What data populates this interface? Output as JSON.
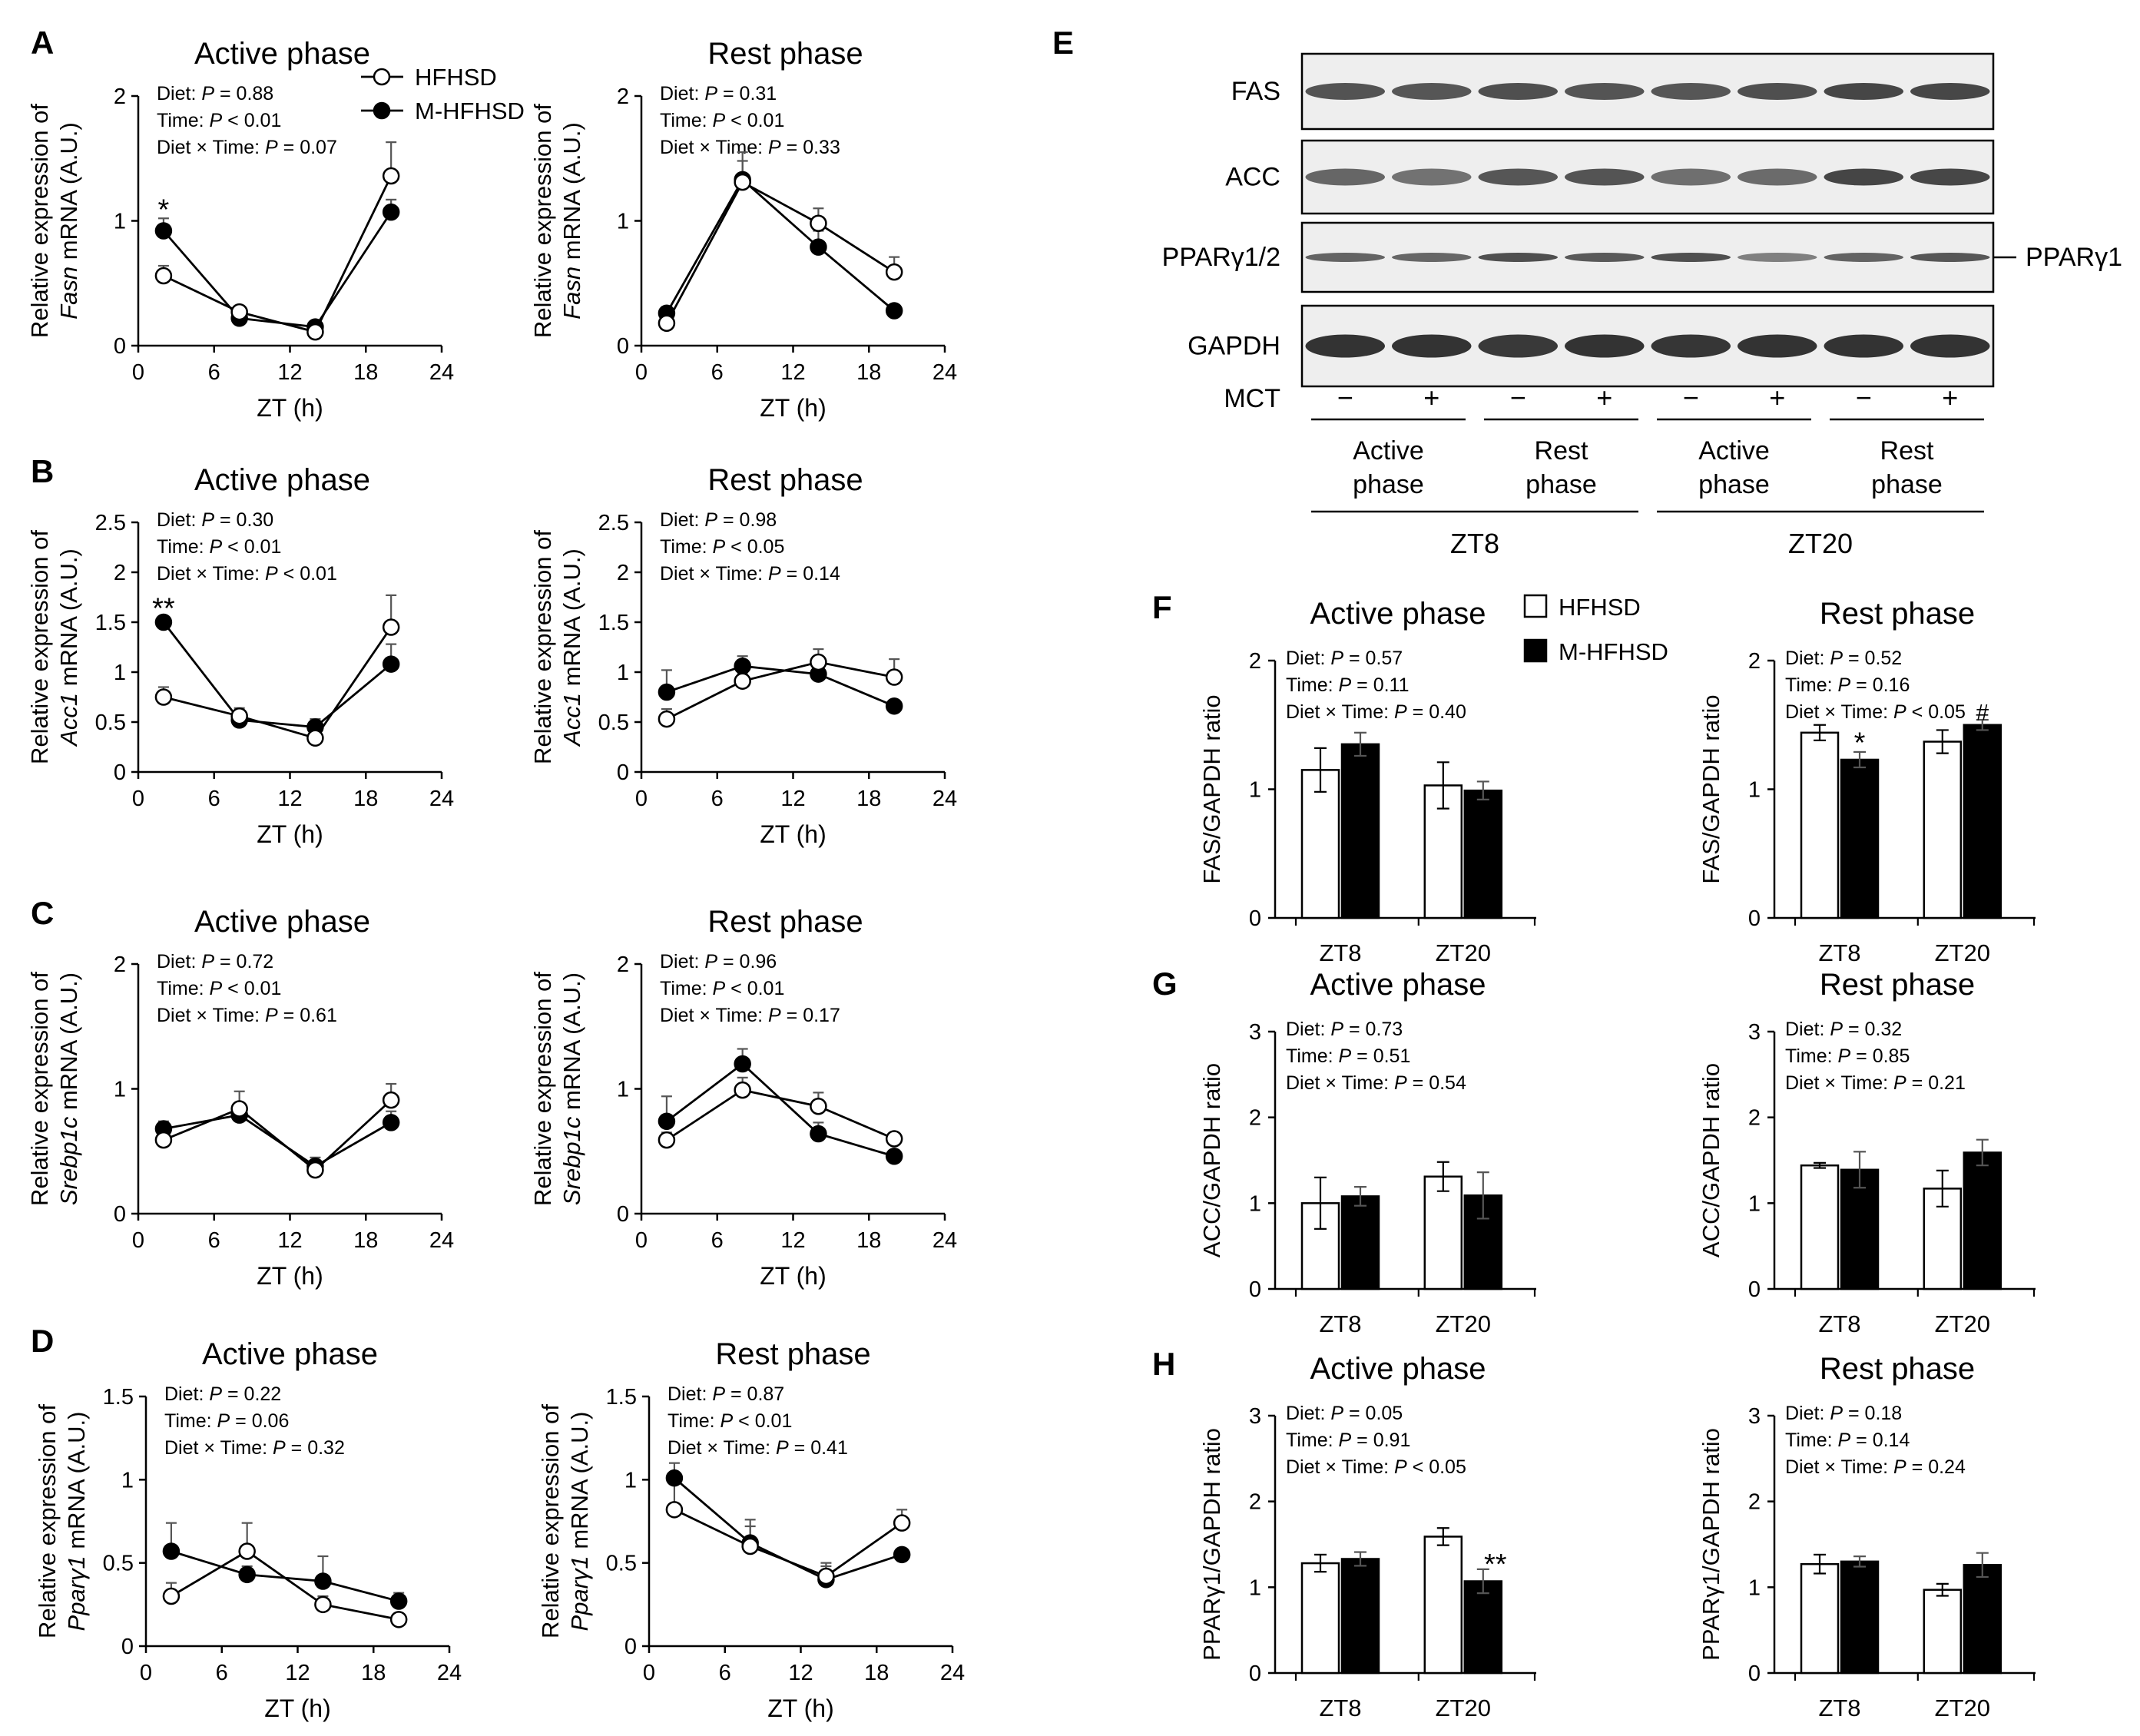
{
  "colors": {
    "open_fill": "#ffffff",
    "filled": "#000000",
    "axis": "#000000",
    "error": "#555555"
  },
  "legend_line": {
    "hfhsd": "HFHSD",
    "mhfhsd": "M-HFHSD"
  },
  "legend_bar": {
    "hfhsd": "HFHSD",
    "mhfhsd": "M-HFHSD"
  },
  "panel_letters": {
    "A": "A",
    "B": "B",
    "C": "C",
    "D": "D",
    "E": "E",
    "F": "F",
    "G": "G",
    "H": "H"
  },
  "chart_data": [
    {
      "id": "A-active",
      "type": "line",
      "title": "Active phase",
      "ylabel": "Relative expression of Fasn mRNA (A.U.)",
      "ylabel_gene": "Fasn",
      "xlabel": "ZT (h)",
      "ylim": [
        0,
        2
      ],
      "yticks": [
        "0",
        "1",
        "2"
      ],
      "xlim": [
        0,
        24
      ],
      "xticks": [
        "0",
        "6",
        "12",
        "18",
        "24"
      ],
      "stats": [
        {
          "label": "Diet: ",
          "p": "P",
          "value": " = 0.88"
        },
        {
          "label": "Time: ",
          "p": "P",
          "value": " < 0.01"
        },
        {
          "label": "Diet × Time: ",
          "p": "P",
          "value": " = 0.07"
        }
      ],
      "x": [
        2,
        8,
        14,
        20
      ],
      "series": [
        {
          "name": "HFHSD",
          "values": [
            0.56,
            0.27,
            0.11,
            1.36
          ],
          "err": [
            0.08,
            0.05,
            0.03,
            0.27
          ]
        },
        {
          "name": "M-HFHSD",
          "values": [
            0.92,
            0.22,
            0.15,
            1.07
          ],
          "err": [
            0.1,
            0.03,
            0.03,
            0.1
          ]
        }
      ],
      "annotations": [
        {
          "text": "*",
          "x": 2,
          "y": 1.1
        }
      ]
    },
    {
      "id": "A-rest",
      "type": "line",
      "title": "Rest phase",
      "ylabel": "Relative expression of Fasn mRNA (A.U.)",
      "ylabel_gene": "Fasn",
      "xlabel": "ZT (h)",
      "ylim": [
        0,
        2
      ],
      "yticks": [
        "0",
        "1",
        "2"
      ],
      "xlim": [
        0,
        24
      ],
      "xticks": [
        "0",
        "6",
        "12",
        "18",
        "24"
      ],
      "stats": [
        {
          "label": "Diet: ",
          "p": "P",
          "value": " = 0.31"
        },
        {
          "label": "Time: ",
          "p": "P",
          "value": " < 0.01"
        },
        {
          "label": "Diet × Time: ",
          "p": "P",
          "value": " = 0.33"
        }
      ],
      "x": [
        2,
        8,
        14,
        20
      ],
      "series": [
        {
          "name": "HFHSD",
          "values": [
            0.18,
            1.31,
            0.98,
            0.59
          ],
          "err": [
            0.04,
            0.17,
            0.12,
            0.12
          ]
        },
        {
          "name": "M-HFHSD",
          "values": [
            0.26,
            1.33,
            0.79,
            0.28
          ],
          "err": [
            0.05,
            0.22,
            0.13,
            0.02
          ]
        }
      ],
      "annotations": []
    },
    {
      "id": "B-active",
      "type": "line",
      "title": "Active phase",
      "ylabel": "Relative expression of Acc1 mRNA (A.U.)",
      "ylabel_gene": "Acc1",
      "xlabel": "ZT (h)",
      "ylim": [
        0,
        2.5
      ],
      "yticks": [
        "0",
        "0.5",
        "1",
        "1.5",
        "2",
        "2.5"
      ],
      "xlim": [
        0,
        24
      ],
      "xticks": [
        "0",
        "6",
        "12",
        "18",
        "24"
      ],
      "stats": [
        {
          "label": "Diet: ",
          "p": "P",
          "value": " = 0.30"
        },
        {
          "label": "Time: ",
          "p": "P",
          "value": " < 0.01"
        },
        {
          "label": "Diet × Time: ",
          "p": "P",
          "value": " < 0.01"
        }
      ],
      "x": [
        2,
        8,
        14,
        20
      ],
      "series": [
        {
          "name": "HFHSD",
          "values": [
            0.75,
            0.56,
            0.34,
            1.45
          ],
          "err": [
            0.1,
            0.08,
            0.04,
            0.32
          ]
        },
        {
          "name": "M-HFHSD",
          "values": [
            1.5,
            0.52,
            0.45,
            1.08
          ],
          "err": [
            0.04,
            0.04,
            0.08,
            0.2
          ]
        }
      ],
      "annotations": [
        {
          "text": "**",
          "x": 2,
          "y": 1.65
        }
      ]
    },
    {
      "id": "B-rest",
      "type": "line",
      "title": "Rest phase",
      "ylabel": "Relative expression of Acc1 mRNA (A.U.)",
      "ylabel_gene": "Acc1",
      "xlabel": "ZT (h)",
      "ylim": [
        0,
        2.5
      ],
      "yticks": [
        "0",
        "0.5",
        "1",
        "1.5",
        "2",
        "2.5"
      ],
      "xlim": [
        0,
        24
      ],
      "xticks": [
        "0",
        "6",
        "12",
        "18",
        "24"
      ],
      "stats": [
        {
          "label": "Diet: ",
          "p": "P",
          "value": " = 0.98"
        },
        {
          "label": "Time: ",
          "p": "P",
          "value": " < 0.05"
        },
        {
          "label": "Diet × Time: ",
          "p": "P",
          "value": " = 0.14"
        }
      ],
      "x": [
        2,
        8,
        14,
        20
      ],
      "series": [
        {
          "name": "HFHSD",
          "values": [
            0.53,
            0.91,
            1.1,
            0.95
          ],
          "err": [
            0.1,
            0.07,
            0.13,
            0.18
          ]
        },
        {
          "name": "M-HFHSD",
          "values": [
            0.8,
            1.06,
            0.98,
            0.66
          ],
          "err": [
            0.22,
            0.1,
            0.16,
            0.03
          ]
        }
      ],
      "annotations": []
    },
    {
      "id": "C-active",
      "type": "line",
      "title": "Active phase",
      "ylabel": "Relative expression of Srebp1c mRNA (A.U.)",
      "ylabel_gene": "Srebp1c",
      "xlabel": "ZT (h)",
      "ylim": [
        0,
        2
      ],
      "yticks": [
        "0",
        "1",
        "2"
      ],
      "xlim": [
        0,
        24
      ],
      "xticks": [
        "0",
        "6",
        "12",
        "18",
        "24"
      ],
      "stats": [
        {
          "label": "Diet: ",
          "p": "P",
          "value": " = 0.72"
        },
        {
          "label": "Time: ",
          "p": "P",
          "value": " < 0.01"
        },
        {
          "label": "Diet × Time: ",
          "p": "P",
          "value": " = 0.61"
        }
      ],
      "x": [
        2,
        8,
        14,
        20
      ],
      "series": [
        {
          "name": "HFHSD",
          "values": [
            0.59,
            0.84,
            0.35,
            0.91
          ],
          "err": [
            0.06,
            0.14,
            0.06,
            0.13
          ]
        },
        {
          "name": "M-HFHSD",
          "values": [
            0.68,
            0.79,
            0.38,
            0.73
          ],
          "err": [
            0.06,
            0.09,
            0.07,
            0.09
          ]
        }
      ],
      "annotations": []
    },
    {
      "id": "C-rest",
      "type": "line",
      "title": "Rest phase",
      "ylabel": "Relative expression of Srebp1c mRNA (A.U.)",
      "ylabel_gene": "Srebp1c",
      "xlabel": "ZT (h)",
      "ylim": [
        0,
        2
      ],
      "yticks": [
        "0",
        "1",
        "2"
      ],
      "xlim": [
        0,
        24
      ],
      "xticks": [
        "0",
        "6",
        "12",
        "18",
        "24"
      ],
      "stats": [
        {
          "label": "Diet: ",
          "p": "P",
          "value": " = 0.96"
        },
        {
          "label": "Time: ",
          "p": "P",
          "value": " < 0.01"
        },
        {
          "label": "Diet × Time: ",
          "p": "P",
          "value": " = 0.17"
        }
      ],
      "x": [
        2,
        8,
        14,
        20
      ],
      "series": [
        {
          "name": "HFHSD",
          "values": [
            0.59,
            0.99,
            0.86,
            0.6
          ],
          "err": [
            0.06,
            0.1,
            0.11,
            0.03
          ]
        },
        {
          "name": "M-HFHSD",
          "values": [
            0.74,
            1.2,
            0.64,
            0.46
          ],
          "err": [
            0.2,
            0.12,
            0.09,
            0.03
          ]
        }
      ],
      "annotations": []
    },
    {
      "id": "D-active",
      "type": "line",
      "title": "Active phase",
      "ylabel": "Relative expression of Pparγ1 mRNA (A.U.)",
      "ylabel_gene": "Pparγ1",
      "xlabel": "ZT (h)",
      "ylim": [
        0,
        1.5
      ],
      "yticks": [
        "0",
        "0.5",
        "1",
        "1.5"
      ],
      "xlim": [
        0,
        24
      ],
      "xticks": [
        "0",
        "6",
        "12",
        "18",
        "24"
      ],
      "stats": [
        {
          "label": "Diet: ",
          "p": "P",
          "value": " = 0.22"
        },
        {
          "label": "Time: ",
          "p": "P",
          "value": " = 0.06"
        },
        {
          "label": "Diet × Time: ",
          "p": "P",
          "value": " = 0.32"
        }
      ],
      "x": [
        2,
        8,
        14,
        20
      ],
      "series": [
        {
          "name": "HFHSD",
          "values": [
            0.3,
            0.57,
            0.25,
            0.16
          ],
          "err": [
            0.08,
            0.17,
            0.05,
            0.02
          ]
        },
        {
          "name": "M-HFHSD",
          "values": [
            0.57,
            0.43,
            0.39,
            0.27
          ],
          "err": [
            0.17,
            0.05,
            0.15,
            0.05
          ]
        }
      ],
      "annotations": []
    },
    {
      "id": "D-rest",
      "type": "line",
      "title": "Rest phase",
      "ylabel": "Relative expression of Pparγ1 mRNA (A.U.)",
      "ylabel_gene": "Pparγ1",
      "xlabel": "ZT (h)",
      "ylim": [
        0,
        1.5
      ],
      "yticks": [
        "0",
        "0.5",
        "1",
        "1.5"
      ],
      "xlim": [
        0,
        24
      ],
      "xticks": [
        "0",
        "6",
        "12",
        "18",
        "24"
      ],
      "stats": [
        {
          "label": "Diet: ",
          "p": "P",
          "value": " = 0.87"
        },
        {
          "label": "Time: ",
          "p": "P",
          "value": " < 0.01"
        },
        {
          "label": "Diet × Time: ",
          "p": "P",
          "value": " = 0.41"
        }
      ],
      "x": [
        2,
        8,
        14,
        20
      ],
      "series": [
        {
          "name": "HFHSD",
          "values": [
            0.82,
            0.6,
            0.42,
            0.74
          ],
          "err": [
            0.2,
            0.12,
            0.06,
            0.08
          ]
        },
        {
          "name": "M-HFHSD",
          "values": [
            1.01,
            0.62,
            0.4,
            0.55
          ],
          "err": [
            0.09,
            0.14,
            0.1,
            0.02
          ]
        }
      ],
      "annotations": []
    },
    {
      "id": "F-active",
      "type": "bar",
      "title": "Active phase",
      "ylabel": "FAS/GAPDH ratio",
      "ylim": [
        0,
        2
      ],
      "yticks": [
        "0",
        "1",
        "2"
      ],
      "categories": [
        "ZT8",
        "ZT20"
      ],
      "stats": [
        {
          "label": "Diet: ",
          "p": "P",
          "value": " = 0.57"
        },
        {
          "label": "Time: ",
          "p": "P",
          "value": " = 0.11"
        },
        {
          "label": "Diet × Time: ",
          "p": "P",
          "value": " = 0.40"
        }
      ],
      "series": [
        {
          "name": "HFHSD",
          "values": [
            1.15,
            1.03
          ],
          "err": [
            0.17,
            0.18
          ]
        },
        {
          "name": "M-HFHSD",
          "values": [
            1.35,
            0.99
          ],
          "err": [
            0.09,
            0.07
          ]
        }
      ],
      "annotations": []
    },
    {
      "id": "F-rest",
      "type": "bar",
      "title": "Rest phase",
      "ylabel": "FAS/GAPDH ratio",
      "ylim": [
        0,
        2
      ],
      "yticks": [
        "0",
        "1",
        "2"
      ],
      "categories": [
        "ZT8",
        "ZT20"
      ],
      "stats": [
        {
          "label": "Diet: ",
          "p": "P",
          "value": " = 0.52"
        },
        {
          "label": "Time: ",
          "p": "P",
          "value": " = 0.16"
        },
        {
          "label": "Diet × Time: ",
          "p": "P",
          "value": " < 0.05"
        }
      ],
      "series": [
        {
          "name": "HFHSD",
          "values": [
            1.44,
            1.37
          ],
          "err": [
            0.06,
            0.09
          ]
        },
        {
          "name": "M-HFHSD",
          "values": [
            1.23,
            1.5
          ],
          "err": [
            0.06,
            0.04
          ]
        }
      ],
      "annotations": [
        {
          "text": "*",
          "group": 0,
          "series": 1,
          "y": 1.37
        },
        {
          "text": "#",
          "group": 1,
          "series": 1,
          "y": 1.62
        }
      ]
    },
    {
      "id": "G-active",
      "type": "bar",
      "title": "Active phase",
      "ylabel": "ACC/GAPDH ratio",
      "ylim": [
        0,
        3
      ],
      "yticks": [
        "0",
        "1",
        "2",
        "3"
      ],
      "categories": [
        "ZT8",
        "ZT20"
      ],
      "stats": [
        {
          "label": "Diet: ",
          "p": "P",
          "value": " = 0.73"
        },
        {
          "label": "Time: ",
          "p": "P",
          "value": " = 0.51"
        },
        {
          "label": "Diet × Time: ",
          "p": "P",
          "value": " = 0.54"
        }
      ],
      "series": [
        {
          "name": "HFHSD",
          "values": [
            1.0,
            1.31
          ],
          "err": [
            0.3,
            0.17
          ]
        },
        {
          "name": "M-HFHSD",
          "values": [
            1.08,
            1.09
          ],
          "err": [
            0.11,
            0.27
          ]
        }
      ],
      "annotations": []
    },
    {
      "id": "G-rest",
      "type": "bar",
      "title": "Rest phase",
      "ylabel": "ACC/GAPDH ratio",
      "ylim": [
        0,
        3
      ],
      "yticks": [
        "0",
        "1",
        "2",
        "3"
      ],
      "categories": [
        "ZT8",
        "ZT20"
      ],
      "stats": [
        {
          "label": "Diet: ",
          "p": "P",
          "value": " = 0.32"
        },
        {
          "label": "Time: ",
          "p": "P",
          "value": " = 0.85"
        },
        {
          "label": "Diet × Time: ",
          "p": "P",
          "value": " = 0.21"
        }
      ],
      "series": [
        {
          "name": "HFHSD",
          "values": [
            1.44,
            1.17
          ],
          "err": [
            0.03,
            0.21
          ]
        },
        {
          "name": "M-HFHSD",
          "values": [
            1.39,
            1.59
          ],
          "err": [
            0.21,
            0.15
          ]
        }
      ],
      "annotations": []
    },
    {
      "id": "H-active",
      "type": "bar",
      "title": "Active phase",
      "ylabel": "PPARγ1/GAPDH ratio",
      "ylim": [
        0,
        3
      ],
      "yticks": [
        "0",
        "1",
        "2",
        "3"
      ],
      "categories": [
        "ZT8",
        "ZT20"
      ],
      "stats": [
        {
          "label": "Diet: ",
          "p": "P",
          "value": " = 0.05"
        },
        {
          "label": "Time: ",
          "p": "P",
          "value": " = 0.91"
        },
        {
          "label": "Diet × Time: ",
          "p": "P",
          "value": " < 0.05"
        }
      ],
      "series": [
        {
          "name": "HFHSD",
          "values": [
            1.28,
            1.59
          ],
          "err": [
            0.1,
            0.1
          ]
        },
        {
          "name": "M-HFHSD",
          "values": [
            1.33,
            1.07
          ],
          "err": [
            0.08,
            0.14
          ]
        }
      ],
      "annotations": [
        {
          "text": "**",
          "group": 1,
          "series": 1,
          "y": 1.28
        }
      ]
    },
    {
      "id": "H-rest",
      "type": "bar",
      "title": "Rest phase",
      "ylabel": "PPARγ1/GAPDH ratio",
      "ylim": [
        0,
        3
      ],
      "yticks": [
        "0",
        "1",
        "2",
        "3"
      ],
      "categories": [
        "ZT8",
        "ZT20"
      ],
      "stats": [
        {
          "label": "Diet: ",
          "p": "P",
          "value": " = 0.18"
        },
        {
          "label": "Time: ",
          "p": "P",
          "value": " = 0.14"
        },
        {
          "label": "Diet × Time: ",
          "p": "P",
          "value": " = 0.24"
        }
      ],
      "series": [
        {
          "name": "HFHSD",
          "values": [
            1.27,
            0.97
          ],
          "err": [
            0.11,
            0.07
          ]
        },
        {
          "name": "M-HFHSD",
          "values": [
            1.3,
            1.26
          ],
          "err": [
            0.06,
            0.14
          ]
        }
      ],
      "annotations": []
    }
  ],
  "blot": {
    "rows": [
      "FAS",
      "ACC",
      "PPARγ1/2",
      "GAPDH"
    ],
    "right_label": "PPARγ1",
    "mct_label": "MCT",
    "mct_signs": [
      "−",
      "+",
      "−",
      "+",
      "−",
      "+",
      "−",
      "+"
    ],
    "groups": [
      {
        "line1": "Active",
        "line2": "phase"
      },
      {
        "line1": "Rest",
        "line2": "phase"
      },
      {
        "line1": "Active",
        "line2": "phase"
      },
      {
        "line1": "Rest",
        "line2": "phase"
      }
    ],
    "timepoints": [
      "ZT8",
      "ZT20"
    ],
    "band_intensity": [
      [
        0.75,
        0.72,
        0.78,
        0.74,
        0.72,
        0.78,
        0.85,
        0.84
      ],
      [
        0.6,
        0.5,
        0.72,
        0.74,
        0.52,
        0.56,
        0.86,
        0.84
      ],
      [
        0.62,
        0.6,
        0.78,
        0.7,
        0.78,
        0.4,
        0.62,
        0.72
      ],
      [
        1.0,
        1.0,
        0.95,
        1.0,
        0.98,
        1.0,
        1.0,
        1.0
      ]
    ]
  }
}
